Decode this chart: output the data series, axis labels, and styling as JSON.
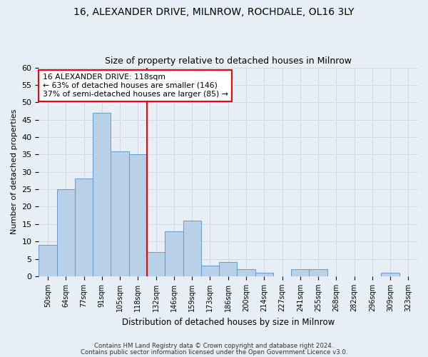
{
  "title1": "16, ALEXANDER DRIVE, MILNROW, ROCHDALE, OL16 3LY",
  "title2": "Size of property relative to detached houses in Milnrow",
  "xlabel": "Distribution of detached houses by size in Milnrow",
  "ylabel": "Number of detached properties",
  "categories": [
    "50sqm",
    "64sqm",
    "77sqm",
    "91sqm",
    "105sqm",
    "118sqm",
    "132sqm",
    "146sqm",
    "159sqm",
    "173sqm",
    "186sqm",
    "200sqm",
    "214sqm",
    "227sqm",
    "241sqm",
    "255sqm",
    "268sqm",
    "282sqm",
    "296sqm",
    "309sqm",
    "323sqm"
  ],
  "values": [
    9,
    25,
    28,
    47,
    36,
    35,
    7,
    13,
    16,
    3,
    4,
    2,
    1,
    0,
    2,
    2,
    0,
    0,
    0,
    1,
    0
  ],
  "bar_color": "#b8d0e8",
  "bar_edge_color": "#6699cc",
  "vline_x": 5.5,
  "vline_color": "red",
  "annotation_line1": "16 ALEXANDER DRIVE: 118sqm",
  "annotation_line2": "← 63% of detached houses are smaller (146)",
  "annotation_line3": "37% of semi-detached houses are larger (85) →",
  "annotation_box_color": "white",
  "annotation_box_edge_color": "red",
  "ylim": [
    0,
    60
  ],
  "yticks": [
    0,
    5,
    10,
    15,
    20,
    25,
    30,
    35,
    40,
    45,
    50,
    55,
    60
  ],
  "grid_color": "#d0d8e4",
  "bg_color": "#e8eef5",
  "plot_bg_color": "#e8eef5",
  "footer1": "Contains HM Land Registry data © Crown copyright and database right 2024.",
  "footer2": "Contains public sector information licensed under the Open Government Licence v3.0."
}
